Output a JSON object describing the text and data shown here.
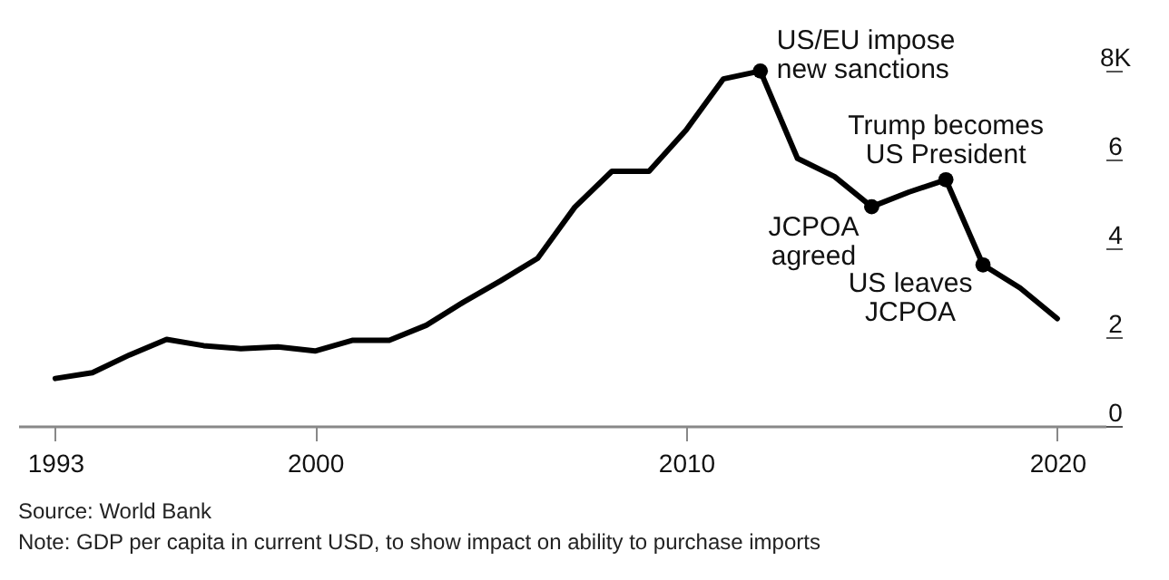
{
  "chart_data": {
    "type": "line",
    "x": [
      1993,
      1994,
      1995,
      1996,
      1997,
      1998,
      1999,
      2000,
      2001,
      2002,
      2003,
      2004,
      2005,
      2006,
      2007,
      2008,
      2009,
      2010,
      2011,
      2012,
      2013,
      2014,
      2015,
      2016,
      2017,
      2018,
      2019,
      2020
    ],
    "series": [
      {
        "color": "#000000",
        "values": [
          1.07,
          1.2,
          1.6,
          1.95,
          1.81,
          1.74,
          1.78,
          1.69,
          1.93,
          1.93,
          2.27,
          2.79,
          3.27,
          3.78,
          4.93,
          5.74,
          5.74,
          6.67,
          7.82,
          8.0,
          6.03,
          5.62,
          4.94,
          5.27,
          5.55,
          3.63,
          3.11,
          2.42
        ]
      }
    ],
    "xlim": [
      1992,
      2021.3
    ],
    "xticks": [
      1993,
      2000,
      2010,
      2020
    ],
    "ylim": [
      0,
      9.6
    ],
    "yticks": [
      0,
      2,
      4,
      6,
      {
        "value": 8,
        "label": "8K"
      }
    ],
    "grid": false,
    "line_style": "solid",
    "annotations": [
      {
        "text": "US/EU impose\nnew sanctions",
        "x": 2012,
        "y": 8.0
      },
      {
        "text": "JCPOA\nagreed",
        "x": 2015,
        "y": 4.94
      },
      {
        "text": "Trump becomes\nUS President",
        "x": 2017,
        "y": 5.55
      },
      {
        "text": "US leaves\nJCPOA",
        "x": 2018,
        "y": 3.63
      },
      "Source: World Bank",
      "Note: GDP per capita in current USD, to show impact on ability to purchase imports"
    ]
  }
}
